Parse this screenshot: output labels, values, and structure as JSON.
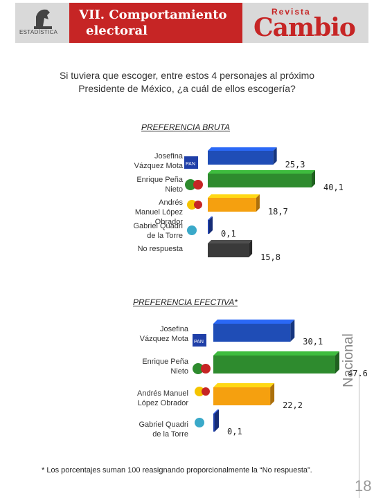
{
  "header": {
    "section_title_line1": "VII. Comportamiento",
    "section_title_line2": "electoral",
    "logo_text": "ESTADÍSTICA",
    "brand_small": "Revista",
    "brand_big": "Cambio"
  },
  "question": "Si tuviera que escoger, entre estos 4 personajes al próximo Presidente de México, ¿a cuál de ellos escogería?",
  "colors": {
    "title_red": "#c62525",
    "vazquez": "#1f4db6",
    "pena": "#2e8b2e",
    "lopez": "#f5a00f",
    "quadri": "#1f3fa8",
    "no_respuesta": "#3a3a3a"
  },
  "chart_data": [
    {
      "type": "bar",
      "title": "PREFERENCIA BRUTA",
      "categories": [
        "Josefina Vázquez Mota",
        "Enrique Peña Nieto",
        "Andrés Manuel López Obrador",
        "Gabriel Quadri de la Torre",
        "No respuesta"
      ],
      "values": [
        25.3,
        40.1,
        18.7,
        0.1,
        15.8
      ],
      "value_labels": [
        "25,3",
        "40,1",
        "18,7",
        "0,1",
        "15,8"
      ],
      "orientation": "horizontal",
      "grid": false,
      "legend": false
    },
    {
      "type": "bar",
      "title": "PREFERENCIA EFECTIVA*",
      "categories": [
        "Josefina Vázquez Mota",
        "Enrique Peña Nieto",
        "Andrés Manuel López Obrador",
        "Gabriel Quadri de la Torre"
      ],
      "values": [
        30.1,
        47.6,
        22.2,
        0.1
      ],
      "value_labels": [
        "30,1",
        "47.6",
        "22,2",
        "0,1"
      ],
      "orientation": "horizontal",
      "grid": false,
      "legend": false
    }
  ],
  "bruta_labels": {
    "c0_l1": "Josefina",
    "c0_l2": "Vázquez Mota",
    "c1_l1": "Enrique Peña",
    "c1_l2": "Nieto",
    "c2_l1": "Andrés",
    "c2_l2": "Manuel López",
    "c2_l3": "Obrador",
    "c3_l1": "Gabriel Quadri",
    "c3_l2": "de la Torre",
    "c4_l1": "No respuesta"
  },
  "efectiva_labels": {
    "c0_l1": "Josefina",
    "c0_l2": "Vázquez Mota",
    "c1_l1": "Enrique Peña",
    "c1_l2": "Nieto",
    "c2_l1": "Andrés Manuel",
    "c2_l2": "López Obrador",
    "c3_l1": "Gabriel Quadri",
    "c3_l2": "de la Torre"
  },
  "footnote": "* Los porcentajes suman 100 reasignando proporcionalmente la “No respuesta”.",
  "side_label": "Nacional",
  "page_number": "18"
}
